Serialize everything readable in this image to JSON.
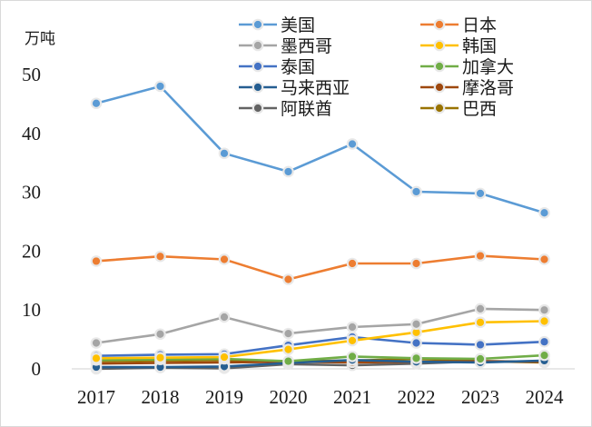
{
  "chart_data": {
    "type": "line",
    "title": "",
    "ylabel": "万吨",
    "xlabel": "",
    "ylim": [
      0,
      50
    ],
    "yticks": [
      0,
      10,
      20,
      30,
      40,
      50
    ],
    "categories": [
      "2017",
      "2018",
      "2019",
      "2020",
      "2021",
      "2022",
      "2023",
      "2024"
    ],
    "legend_position": "top-right",
    "series": [
      {
        "name": "美国",
        "color": "#5B9BD5",
        "values": [
          45.1,
          48.0,
          36.6,
          33.5,
          38.2,
          30.1,
          29.8,
          26.5
        ]
      },
      {
        "name": "日本",
        "color": "#ED7D31",
        "values": [
          18.3,
          19.1,
          18.6,
          15.2,
          17.9,
          17.9,
          19.2,
          18.6
        ]
      },
      {
        "name": "墨西哥",
        "color": "#A5A5A5",
        "values": [
          4.4,
          5.9,
          8.8,
          6.0,
          7.1,
          7.6,
          10.2,
          10.0
        ]
      },
      {
        "name": "韩国",
        "color": "#FFC000",
        "values": [
          1.8,
          1.9,
          2.0,
          3.3,
          4.8,
          6.2,
          7.9,
          8.1
        ]
      },
      {
        "name": "泰国",
        "color": "#4472C4",
        "values": [
          2.2,
          2.4,
          2.5,
          4.0,
          5.4,
          4.4,
          4.1,
          4.6
        ]
      },
      {
        "name": "加拿大",
        "color": "#70AD47",
        "values": [
          1.5,
          1.6,
          1.7,
          1.3,
          2.1,
          1.8,
          1.7,
          2.3
        ]
      },
      {
        "name": "马来西亚",
        "color": "#255E91",
        "values": [
          0.3,
          0.3,
          0.4,
          1.0,
          1.5,
          1.2,
          1.1,
          1.4
        ]
      },
      {
        "name": "摩洛哥",
        "color": "#9E480E",
        "values": [
          0.9,
          1.0,
          1.1,
          1.2,
          1.1,
          1.2,
          1.3,
          1.2
        ]
      },
      {
        "name": "阿联酋",
        "color": "#636363",
        "values": [
          0.0,
          0.2,
          0.1,
          0.8,
          0.6,
          0.9,
          1.3,
          1.2
        ]
      },
      {
        "name": "巴西",
        "color": "#997300",
        "values": [
          1.3,
          1.4,
          1.5,
          1.3,
          1.4,
          1.7,
          1.3,
          1.1
        ]
      }
    ]
  }
}
